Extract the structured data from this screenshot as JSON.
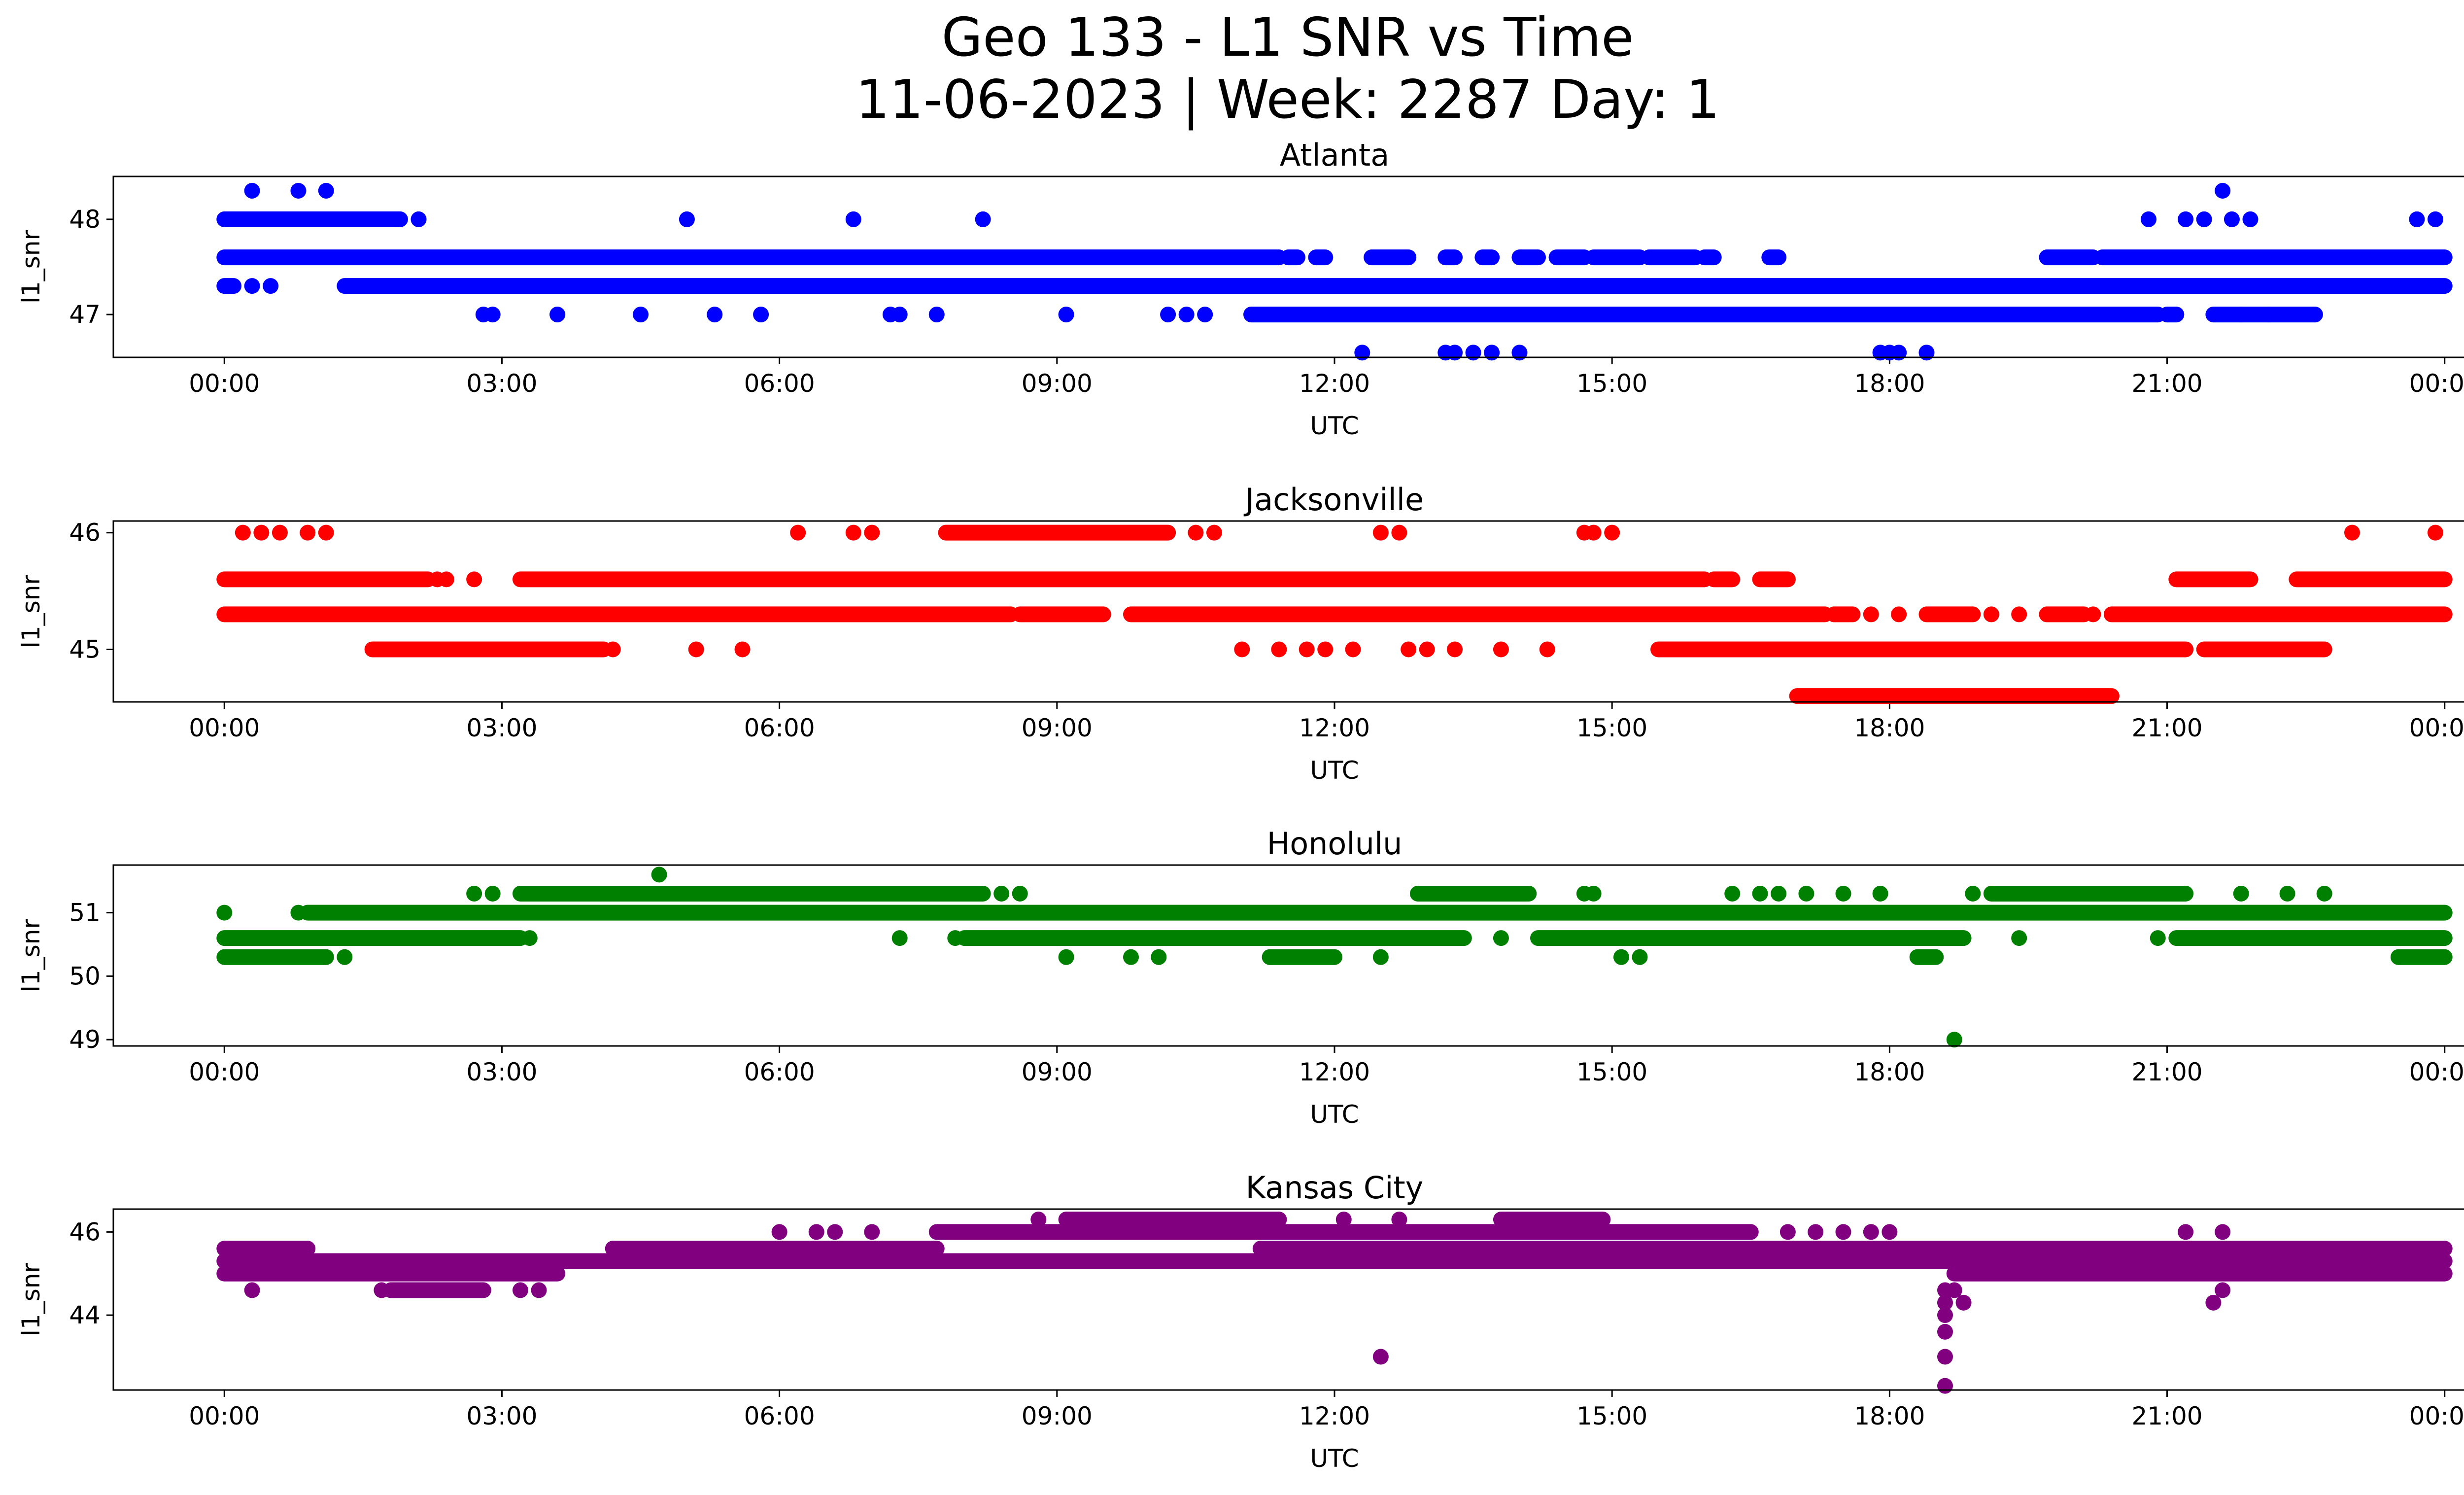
{
  "figure": {
    "title_line1": "Geo 133 - L1 SNR vs Time",
    "title_line2": "11-06-2023 | Week: 2287 Day: 1"
  },
  "chart_data": [
    {
      "type": "scatter",
      "title": "Atlanta",
      "xlabel": "UTC",
      "ylabel": "l1_snr",
      "color": "#0000ff",
      "xticks": [
        "00:00",
        "03:00",
        "06:00",
        "09:00",
        "12:00",
        "15:00",
        "18:00",
        "21:00",
        "00:00"
      ],
      "xlim": [
        -1.2,
        25.2
      ],
      "yticks": [
        47,
        48
      ],
      "ylim": [
        46.55,
        48.45
      ],
      "series": [
        {
          "bands": [
            {
              "y": 47.6,
              "ranges": [
                [
                  0.0,
                  11.4
                ],
                [
                  11.5,
                  11.6
                ],
                [
                  11.8,
                  11.9
                ],
                [
                  12.4,
                  12.8
                ],
                [
                  13.2,
                  13.3
                ],
                [
                  13.6,
                  13.7
                ],
                [
                  14.0,
                  14.2
                ],
                [
                  14.4,
                  14.7
                ],
                [
                  14.8,
                  15.3
                ],
                [
                  15.4,
                  15.9
                ],
                [
                  16.0,
                  16.1
                ],
                [
                  16.7,
                  16.8
                ],
                [
                  19.7,
                  20.2
                ],
                [
                  20.3,
                  24.0
                ]
              ]
            },
            {
              "y": 47.3,
              "ranges": [
                [
                  0.0,
                  0.1
                ],
                [
                  1.3,
                  24.0
                ]
              ]
            },
            {
              "y": 48.0,
              "ranges": [
                [
                  0.0,
                  1.9
                ]
              ]
            },
            {
              "y": 47.0,
              "ranges": [
                [
                  11.1,
                  20.9
                ],
                [
                  21.0,
                  21.1
                ],
                [
                  21.5,
                  22.6
                ]
              ]
            }
          ],
          "points": [
            [
              0.3,
              48.3
            ],
            [
              0.8,
              48.3
            ],
            [
              1.1,
              48.3
            ],
            [
              21.6,
              48.3
            ],
            [
              2.1,
              48.0
            ],
            [
              5.0,
              48.0
            ],
            [
              6.8,
              48.0
            ],
            [
              8.2,
              48.0
            ],
            [
              20.8,
              48.0
            ],
            [
              21.2,
              48.0
            ],
            [
              21.4,
              48.0
            ],
            [
              21.7,
              48.0
            ],
            [
              21.9,
              48.0
            ],
            [
              23.7,
              48.0
            ],
            [
              23.9,
              48.0
            ],
            [
              0.3,
              47.3
            ],
            [
              0.5,
              47.3
            ],
            [
              2.8,
              47.0
            ],
            [
              2.9,
              47.0
            ],
            [
              3.6,
              47.0
            ],
            [
              4.5,
              47.0
            ],
            [
              5.3,
              47.0
            ],
            [
              5.8,
              47.0
            ],
            [
              7.2,
              47.0
            ],
            [
              7.3,
              47.0
            ],
            [
              7.7,
              47.0
            ],
            [
              9.1,
              47.0
            ],
            [
              10.2,
              47.0
            ],
            [
              10.4,
              47.0
            ],
            [
              10.6,
              47.0
            ],
            [
              21.8,
              47.0
            ],
            [
              22.1,
              47.0
            ],
            [
              12.3,
              46.6
            ],
            [
              13.2,
              46.6
            ],
            [
              13.3,
              46.6
            ],
            [
              13.5,
              46.6
            ],
            [
              13.7,
              46.6
            ],
            [
              14.0,
              46.6
            ],
            [
              17.9,
              46.6
            ],
            [
              18.0,
              46.6
            ],
            [
              18.1,
              46.6
            ],
            [
              18.4,
              46.6
            ]
          ]
        }
      ]
    },
    {
      "type": "scatter",
      "title": "Jacksonville",
      "xlabel": "UTC",
      "ylabel": "l1_snr",
      "color": "#ff0000",
      "xticks": [
        "00:00",
        "03:00",
        "06:00",
        "09:00",
        "12:00",
        "15:00",
        "18:00",
        "21:00",
        "00:00"
      ],
      "xlim": [
        -1.2,
        25.2
      ],
      "yticks": [
        45,
        46
      ],
      "ylim": [
        44.55,
        46.1
      ],
      "series": [
        {
          "bands": [
            {
              "y": 45.6,
              "ranges": [
                [
                  0.0,
                  2.2
                ],
                [
                  3.2,
                  16.0
                ],
                [
                  16.1,
                  16.3
                ],
                [
                  16.6,
                  16.9
                ],
                [
                  21.1,
                  21.9
                ],
                [
                  22.4,
                  24.0
                ]
              ]
            },
            {
              "y": 45.3,
              "ranges": [
                [
                  0.0,
                  8.5
                ],
                [
                  8.6,
                  9.5
                ],
                [
                  9.8,
                  17.3
                ],
                [
                  17.4,
                  17.6
                ],
                [
                  18.4,
                  18.9
                ],
                [
                  19.7,
                  20.1
                ],
                [
                  20.4,
                  24.0
                ]
              ]
            },
            {
              "y": 45.0,
              "ranges": [
                [
                  1.6,
                  4.1
                ],
                [
                  15.5,
                  21.2
                ],
                [
                  21.4,
                  22.7
                ]
              ]
            },
            {
              "y": 46.0,
              "ranges": [
                [
                  7.8,
                  10.2
                ]
              ]
            },
            {
              "y": 44.6,
              "ranges": [
                [
                  17.0,
                  20.4
                ]
              ]
            }
          ],
          "points": [
            [
              0.2,
              46.0
            ],
            [
              0.4,
              46.0
            ],
            [
              0.6,
              46.0
            ],
            [
              0.9,
              46.0
            ],
            [
              1.1,
              46.0
            ],
            [
              6.2,
              46.0
            ],
            [
              6.8,
              46.0
            ],
            [
              7.0,
              46.0
            ],
            [
              10.5,
              46.0
            ],
            [
              10.7,
              46.0
            ],
            [
              12.5,
              46.0
            ],
            [
              12.7,
              46.0
            ],
            [
              14.7,
              46.0
            ],
            [
              14.8,
              46.0
            ],
            [
              15.0,
              46.0
            ],
            [
              23.0,
              46.0
            ],
            [
              23.9,
              46.0
            ],
            [
              2.3,
              45.6
            ],
            [
              2.4,
              45.6
            ],
            [
              2.7,
              45.6
            ],
            [
              17.8,
              45.3
            ],
            [
              18.1,
              45.3
            ],
            [
              19.1,
              45.3
            ],
            [
              19.4,
              45.3
            ],
            [
              20.2,
              45.3
            ],
            [
              4.2,
              45.0
            ],
            [
              5.1,
              45.0
            ],
            [
              5.6,
              45.0
            ],
            [
              11.0,
              45.0
            ],
            [
              11.4,
              45.0
            ],
            [
              11.7,
              45.0
            ],
            [
              11.9,
              45.0
            ],
            [
              12.2,
              45.0
            ],
            [
              12.8,
              45.0
            ],
            [
              13.0,
              45.0
            ],
            [
              13.3,
              45.0
            ],
            [
              13.8,
              45.0
            ],
            [
              14.3,
              45.0
            ]
          ]
        }
      ]
    },
    {
      "type": "scatter",
      "title": "Honolulu",
      "xlabel": "UTC",
      "ylabel": "l1_snr",
      "color": "#008000",
      "xticks": [
        "00:00",
        "03:00",
        "06:00",
        "09:00",
        "12:00",
        "15:00",
        "18:00",
        "21:00",
        "00:00"
      ],
      "xlim": [
        -1.2,
        25.2
      ],
      "yticks": [
        49,
        50,
        51
      ],
      "ylim": [
        48.9,
        51.75
      ],
      "series": [
        {
          "bands": [
            {
              "y": 51.0,
              "ranges": [
                [
                  0.9,
                  24.0
                ]
              ]
            },
            {
              "y": 50.6,
              "ranges": [
                [
                  0.0,
                  3.2
                ],
                [
                  8.0,
                  13.4
                ],
                [
                  14.2,
                  18.8
                ],
                [
                  21.1,
                  24.0
                ]
              ]
            },
            {
              "y": 50.3,
              "ranges": [
                [
                  0.0,
                  1.1
                ],
                [
                  11.3,
                  12.0
                ],
                [
                  18.3,
                  18.5
                ],
                [
                  23.5,
                  24.0
                ]
              ]
            },
            {
              "y": 51.3,
              "ranges": [
                [
                  3.2,
                  8.2
                ],
                [
                  12.9,
                  14.1
                ],
                [
                  19.1,
                  21.2
                ]
              ]
            }
          ],
          "points": [
            [
              0.0,
              51.0
            ],
            [
              0.8,
              51.0
            ],
            [
              1.3,
              50.3
            ],
            [
              9.1,
              50.3
            ],
            [
              9.8,
              50.3
            ],
            [
              10.1,
              50.3
            ],
            [
              12.5,
              50.3
            ],
            [
              15.1,
              50.3
            ],
            [
              15.3,
              50.3
            ],
            [
              3.3,
              50.6
            ],
            [
              7.3,
              50.6
            ],
            [
              7.9,
              50.6
            ],
            [
              13.8,
              50.6
            ],
            [
              19.4,
              50.6
            ],
            [
              20.9,
              50.6
            ],
            [
              2.7,
              51.3
            ],
            [
              2.9,
              51.3
            ],
            [
              8.4,
              51.3
            ],
            [
              8.6,
              51.3
            ],
            [
              14.7,
              51.3
            ],
            [
              14.8,
              51.3
            ],
            [
              16.3,
              51.3
            ],
            [
              16.6,
              51.3
            ],
            [
              16.8,
              51.3
            ],
            [
              17.1,
              51.3
            ],
            [
              17.5,
              51.3
            ],
            [
              17.9,
              51.3
            ],
            [
              18.9,
              51.3
            ],
            [
              21.8,
              51.3
            ],
            [
              22.3,
              51.3
            ],
            [
              22.7,
              51.3
            ],
            [
              4.7,
              51.6
            ],
            [
              18.7,
              49.0
            ]
          ]
        }
      ]
    },
    {
      "type": "scatter",
      "title": "Kansas City",
      "xlabel": "UTC",
      "ylabel": "l1_snr",
      "color": "#800080",
      "xticks": [
        "00:00",
        "03:00",
        "06:00",
        "09:00",
        "12:00",
        "15:00",
        "18:00",
        "21:00",
        "00:00"
      ],
      "xlim": [
        -1.2,
        25.2
      ],
      "yticks": [
        44,
        46
      ],
      "ylim": [
        42.2,
        46.55
      ],
      "series": [
        {
          "bands": [
            {
              "y": 45.6,
              "ranges": [
                [
                  0.0,
                  0.9
                ],
                [
                  4.2,
                  7.7
                ],
                [
                  11.2,
                  24.0
                ]
              ]
            },
            {
              "y": 45.3,
              "ranges": [
                [
                  0.0,
                  24.0
                ]
              ]
            },
            {
              "y": 45.0,
              "ranges": [
                [
                  0.0,
                  3.6
                ],
                [
                  18.7,
                  24.0
                ]
              ]
            },
            {
              "y": 44.6,
              "ranges": [
                [
                  1.8,
                  2.8
                ]
              ]
            },
            {
              "y": 46.0,
              "ranges": [
                [
                  7.7,
                  16.5
                ]
              ]
            },
            {
              "y": 46.3,
              "ranges": [
                [
                  9.1,
                  11.4
                ],
                [
                  13.8,
                  14.9
                ]
              ]
            }
          ],
          "points": [
            [
              0.3,
              44.6
            ],
            [
              1.7,
              44.6
            ],
            [
              3.2,
              44.6
            ],
            [
              3.4,
              44.6
            ],
            [
              21.6,
              44.6
            ],
            [
              21.5,
              44.3
            ],
            [
              6.0,
              46.0
            ],
            [
              6.4,
              46.0
            ],
            [
              6.6,
              46.0
            ],
            [
              7.0,
              46.0
            ],
            [
              16.9,
              46.0
            ],
            [
              17.2,
              46.0
            ],
            [
              17.5,
              46.0
            ],
            [
              17.8,
              46.0
            ],
            [
              18.0,
              46.0
            ],
            [
              21.2,
              46.0
            ],
            [
              21.6,
              46.0
            ],
            [
              8.8,
              46.3
            ],
            [
              12.1,
              46.3
            ],
            [
              12.7,
              46.3
            ],
            [
              12.5,
              43.0
            ],
            [
              18.6,
              44.6
            ],
            [
              18.6,
              44.3
            ],
            [
              18.6,
              44.0
            ],
            [
              18.6,
              43.6
            ],
            [
              18.6,
              43.0
            ],
            [
              18.6,
              42.3
            ],
            [
              18.7,
              44.6
            ],
            [
              18.8,
              44.3
            ]
          ]
        }
      ]
    }
  ]
}
